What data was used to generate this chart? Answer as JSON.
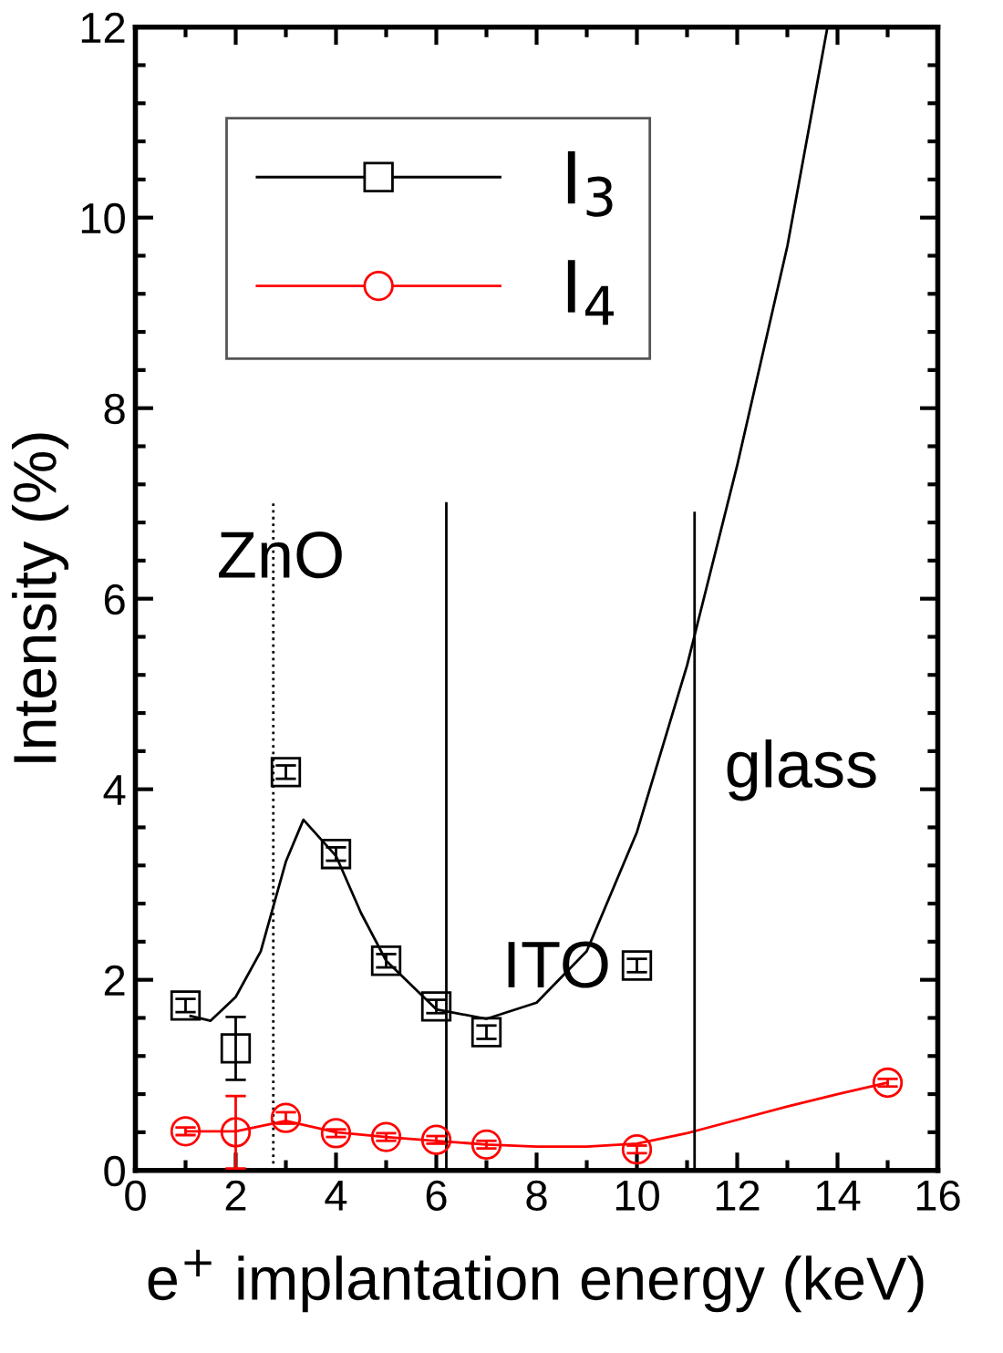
{
  "chart_data": {
    "type": "scatter",
    "xlabel": "e$^{+}$ implantation energy (keV)",
    "ylabel": "Intensity (%)",
    "xlim": [
      0,
      16
    ],
    "xticks": [
      0,
      2,
      4,
      6,
      8,
      10,
      12,
      14,
      16
    ],
    "ylim": [
      0,
      12
    ],
    "yticks": [
      0,
      2,
      4,
      6,
      8,
      10,
      12
    ],
    "grid": false,
    "legend": "top left",
    "series": [
      {
        "name": "I$_{3}$",
        "color": "#000000",
        "marker": "square",
        "x": [
          1,
          2,
          3,
          4,
          5,
          6,
          7,
          10
        ],
        "values": [
          1.73,
          1.28,
          4.18,
          3.32,
          2.2,
          1.72,
          1.45,
          2.15
        ],
        "errors": [
          0.07,
          0.33,
          0.07,
          0.07,
          0.07,
          0.07,
          0.07,
          0.07
        ]
      },
      {
        "name": "I$_{4}$",
        "color": "#ff0000",
        "marker": "circle",
        "x": [
          1,
          2,
          3,
          4,
          5,
          6,
          7,
          10,
          15
        ],
        "values": [
          0.41,
          0.4,
          0.55,
          0.39,
          0.35,
          0.32,
          0.27,
          0.22,
          0.92
        ],
        "errors": [
          0.04,
          0.38,
          0.06,
          0.04,
          0.04,
          0.04,
          0.04,
          0.04,
          0.04
        ]
      },
      {
        "type": "line",
        "color": "#000000",
        "x": [
          1.1,
          1.5,
          2,
          2.5,
          3,
          3.35,
          4,
          4.5,
          5,
          6,
          7,
          8,
          9,
          10,
          11,
          12,
          13,
          13.8
        ],
        "values": [
          1.62,
          1.57,
          1.82,
          2.3,
          3.24,
          3.68,
          3.3,
          2.7,
          2.2,
          1.69,
          1.59,
          1.76,
          2.3,
          3.55,
          5.3,
          7.4,
          9.7,
          12
        ]
      },
      {
        "type": "line",
        "color": "#ff0000",
        "x": [
          1,
          2,
          3,
          4,
          5,
          6,
          7,
          8,
          9,
          10,
          11,
          12,
          13,
          14,
          15
        ],
        "values": [
          0.41,
          0.41,
          0.52,
          0.4,
          0.35,
          0.31,
          0.27,
          0.25,
          0.25,
          0.28,
          0.39,
          0.53,
          0.67,
          0.8,
          0.92
        ]
      },
      {
        "type": "line",
        "color": "#000000",
        "line_style": "dotted",
        "x": [
          2.75,
          2.75
        ],
        "values": [
          0,
          7
        ]
      },
      {
        "type": "line",
        "color": "#000000",
        "x": [
          6.2,
          6.2
        ],
        "values": [
          0,
          7
        ]
      },
      {
        "type": "line",
        "color": "#000000",
        "x": [
          11.15,
          11.15
        ],
        "values": [
          0,
          6.9
        ]
      }
    ],
    "annotations": [
      {
        "text": "ZnO",
        "x": 2.9,
        "y": 6.4
      },
      {
        "text": "ITO",
        "x": 8.4,
        "y": 2.1
      },
      "glass"
    ]
  }
}
